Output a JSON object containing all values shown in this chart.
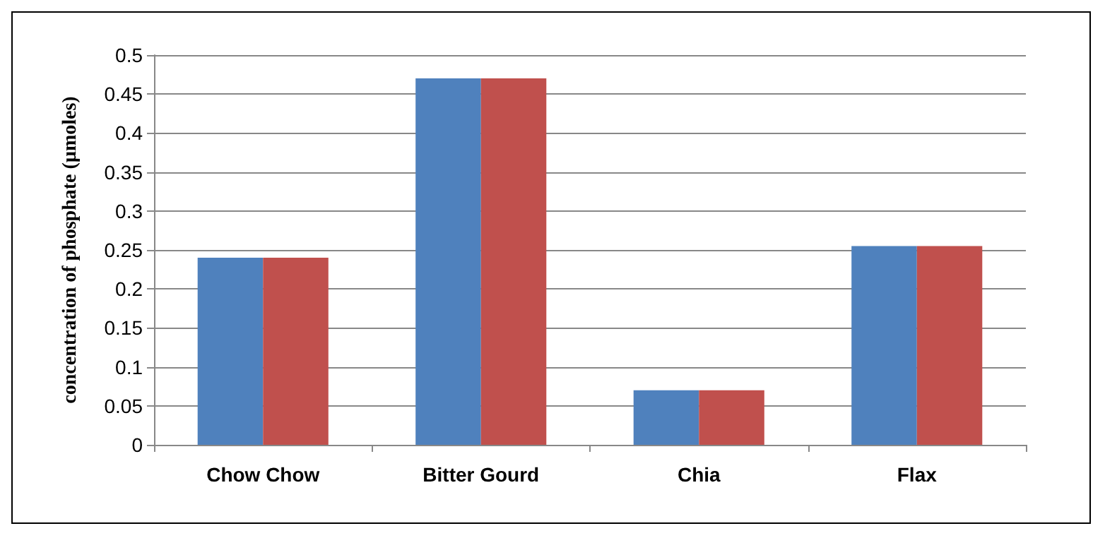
{
  "chart_data": {
    "type": "bar",
    "ylabel": "concentration of phosphate (µmoles)",
    "categories": [
      "Chow Chow",
      "Bitter Gourd",
      "Chia",
      "Flax"
    ],
    "series": [
      {
        "color": "#4f81bd",
        "values": [
          0.24,
          0.47,
          0.07,
          0.255
        ]
      },
      {
        "color": "#c0504d",
        "values": [
          0.24,
          0.47,
          0.07,
          0.255
        ]
      }
    ],
    "ylim": [
      0,
      0.5
    ],
    "yticks": [
      0,
      0.05,
      0.1,
      0.15,
      0.2,
      0.25,
      0.3,
      0.35,
      0.4,
      0.45,
      0.5
    ],
    "grid": "y"
  }
}
